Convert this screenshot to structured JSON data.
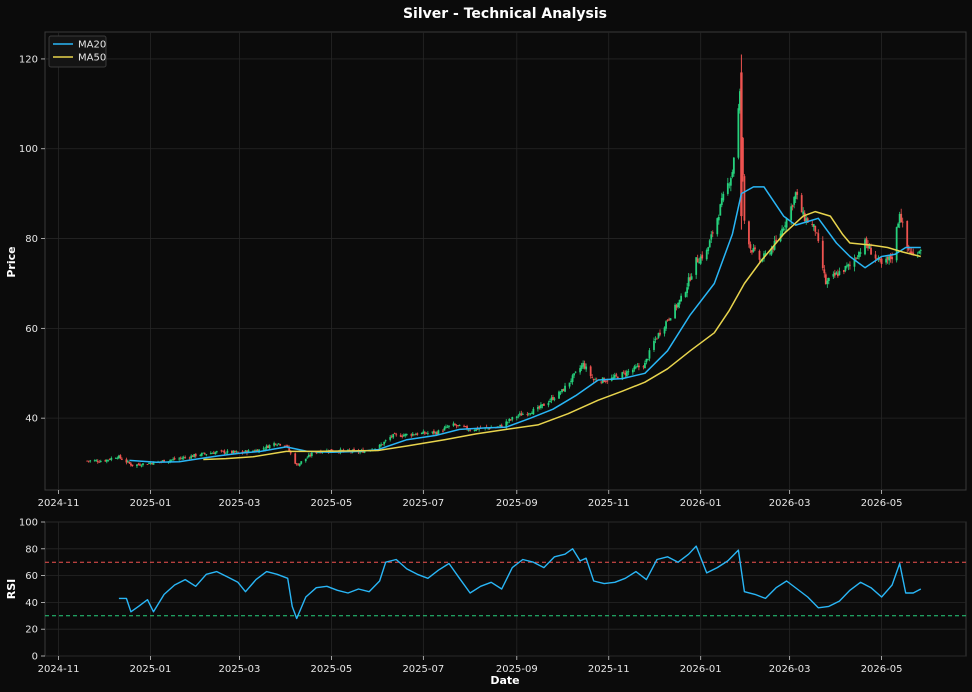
{
  "chart_data": [
    {
      "type": "candlestick",
      "title": "Silver - Technical Analysis",
      "xlabel": "",
      "ylabel": "Price",
      "ylim": [
        24,
        126
      ],
      "xlim": [
        "2024-10-23",
        "2026-06-26"
      ],
      "x_ticks": [
        "2024-11",
        "2025-01",
        "2025-03",
        "2025-05",
        "2025-07",
        "2025-09",
        "2025-11",
        "2026-01",
        "2026-03",
        "2026-05"
      ],
      "y_ticks": [
        40,
        60,
        80,
        100,
        120
      ],
      "grid": true,
      "legend_placement": "top-left",
      "colors": {
        "up": "#26d07c",
        "down": "#ef5350",
        "ma20": "#29b6f6",
        "ma50": "#e8d44d",
        "background": "#0b0b0b",
        "grid": "#2a2a2a"
      },
      "close_anchors": [
        [
          "2024-11-20",
          30.5
        ],
        [
          "2024-12-01",
          30.5
        ],
        [
          "2024-12-10",
          31.5
        ],
        [
          "2024-12-20",
          29.5
        ],
        [
          "2025-01-05",
          30.2
        ],
        [
          "2025-01-20",
          31.0
        ],
        [
          "2025-02-01",
          31.8
        ],
        [
          "2025-02-15",
          32.5
        ],
        [
          "2025-03-01",
          32.3
        ],
        [
          "2025-03-15",
          33.0
        ],
        [
          "2025-03-25",
          34.5
        ],
        [
          "2025-04-01",
          34.0
        ],
        [
          "2025-04-08",
          29.5
        ],
        [
          "2025-04-20",
          32.5
        ],
        [
          "2025-05-01",
          32.8
        ],
        [
          "2025-05-20",
          32.5
        ],
        [
          "2025-06-01",
          33.5
        ],
        [
          "2025-06-10",
          36.0
        ],
        [
          "2025-06-25",
          36.5
        ],
        [
          "2025-07-10",
          36.8
        ],
        [
          "2025-07-20",
          38.5
        ],
        [
          "2025-08-01",
          37.5
        ],
        [
          "2025-08-20",
          38.0
        ],
        [
          "2025-09-01",
          40.5
        ],
        [
          "2025-09-15",
          42.0
        ],
        [
          "2025-10-01",
          46.0
        ],
        [
          "2025-10-15",
          52.0
        ],
        [
          "2025-10-22",
          48.5
        ],
        [
          "2025-11-01",
          48.5
        ],
        [
          "2025-11-15",
          50.5
        ],
        [
          "2025-11-25",
          52.0
        ],
        [
          "2025-12-01",
          57.0
        ],
        [
          "2025-12-10",
          62.0
        ],
        [
          "2025-12-20",
          67.0
        ],
        [
          "2025-12-29",
          75.0
        ],
        [
          "2026-01-05",
          77.0
        ],
        [
          "2026-01-15",
          88.0
        ],
        [
          "2026-01-22",
          95.0
        ],
        [
          "2026-01-27",
          112.0
        ],
        [
          "2026-01-30",
          84.0
        ],
        [
          "2026-02-03",
          78.0
        ],
        [
          "2026-02-10",
          75.0
        ],
        [
          "2026-02-20",
          79.0
        ],
        [
          "2026-03-01",
          86.0
        ],
        [
          "2026-03-05",
          90.0
        ],
        [
          "2026-03-10",
          85.0
        ],
        [
          "2026-03-18",
          82.0
        ],
        [
          "2026-03-25",
          70.0
        ],
        [
          "2026-04-01",
          72.0
        ],
        [
          "2026-04-10",
          74.0
        ],
        [
          "2026-04-20",
          79.0
        ],
        [
          "2026-05-01",
          74.0
        ],
        [
          "2026-05-08",
          76.0
        ],
        [
          "2026-05-13",
          86.0
        ],
        [
          "2026-05-18",
          78.0
        ],
        [
          "2026-05-22",
          76.0
        ],
        [
          "2026-05-27",
          78.0
        ]
      ],
      "series": [
        {
          "name": "MA20",
          "color": "#29b6f6",
          "values": [
            [
              "2024-12-18",
              30.6
            ],
            [
              "2025-01-05",
              30.2
            ],
            [
              "2025-01-20",
              30.3
            ],
            [
              "2025-02-01",
              30.9
            ],
            [
              "2025-02-15",
              31.6
            ],
            [
              "2025-03-01",
              32.2
            ],
            [
              "2025-03-15",
              32.6
            ],
            [
              "2025-04-01",
              33.6
            ],
            [
              "2025-04-15",
              32.6
            ],
            [
              "2025-05-01",
              32.4
            ],
            [
              "2025-05-20",
              32.6
            ],
            [
              "2025-06-01",
              33.0
            ],
            [
              "2025-06-20",
              35.2
            ],
            [
              "2025-07-10",
              36.2
            ],
            [
              "2025-07-25",
              37.5
            ],
            [
              "2025-08-10",
              37.8
            ],
            [
              "2025-08-25",
              38.0
            ],
            [
              "2025-09-10",
              40.0
            ],
            [
              "2025-09-25",
              42.0
            ],
            [
              "2025-10-10",
              45.0
            ],
            [
              "2025-10-25",
              48.5
            ],
            [
              "2025-11-10",
              48.8
            ],
            [
              "2025-11-25",
              50.0
            ],
            [
              "2025-12-10",
              55.0
            ],
            [
              "2025-12-25",
              63.0
            ],
            [
              "2026-01-10",
              70.0
            ],
            [
              "2026-01-22",
              81.0
            ],
            [
              "2026-01-28",
              90.0
            ],
            [
              "2026-02-05",
              91.5
            ],
            [
              "2026-02-12",
              91.5
            ],
            [
              "2026-02-25",
              85.0
            ],
            [
              "2026-03-05",
              83.0
            ],
            [
              "2026-03-15",
              84.0
            ],
            [
              "2026-03-20",
              84.5
            ],
            [
              "2026-04-01",
              79.0
            ],
            [
              "2026-04-10",
              76.0
            ],
            [
              "2026-04-20",
              73.5
            ],
            [
              "2026-05-01",
              76.0
            ],
            [
              "2026-05-10",
              76.5
            ],
            [
              "2026-05-17",
              78.0
            ],
            [
              "2026-05-27",
              78.0
            ]
          ]
        },
        {
          "name": "MA50",
          "color": "#e8d44d",
          "values": [
            [
              "2025-02-05",
              30.8
            ],
            [
              "2025-02-20",
              31.0
            ],
            [
              "2025-03-10",
              31.4
            ],
            [
              "2025-04-01",
              32.6
            ],
            [
              "2025-04-20",
              32.6
            ],
            [
              "2025-05-15",
              32.7
            ],
            [
              "2025-06-01",
              32.8
            ],
            [
              "2025-06-20",
              33.8
            ],
            [
              "2025-07-15",
              35.2
            ],
            [
              "2025-08-05",
              36.5
            ],
            [
              "2025-08-25",
              37.5
            ],
            [
              "2025-09-15",
              38.5
            ],
            [
              "2025-10-05",
              41.0
            ],
            [
              "2025-10-25",
              44.0
            ],
            [
              "2025-11-10",
              46.0
            ],
            [
              "2025-11-25",
              48.0
            ],
            [
              "2025-12-10",
              51.0
            ],
            [
              "2025-12-25",
              55.0
            ],
            [
              "2026-01-10",
              59.0
            ],
            [
              "2026-01-20",
              64.0
            ],
            [
              "2026-01-30",
              70.0
            ],
            [
              "2026-02-10",
              75.0
            ],
            [
              "2026-02-25",
              81.0
            ],
            [
              "2026-03-10",
              85.0
            ],
            [
              "2026-03-18",
              86.0
            ],
            [
              "2026-03-28",
              85.0
            ],
            [
              "2026-04-05",
              81.0
            ],
            [
              "2026-04-10",
              79.0
            ],
            [
              "2026-04-25",
              78.5
            ],
            [
              "2026-05-05",
              78.0
            ],
            [
              "2026-05-15",
              77.0
            ],
            [
              "2026-05-27",
              76.0
            ]
          ]
        }
      ]
    },
    {
      "type": "line",
      "title": "",
      "xlabel": "Date",
      "ylabel": "RSI",
      "ylim": [
        0,
        100
      ],
      "xlim": [
        "2024-10-23",
        "2026-06-26"
      ],
      "x_ticks": [
        "2024-11",
        "2025-01",
        "2025-03",
        "2025-05",
        "2025-07",
        "2025-09",
        "2025-11",
        "2026-01",
        "2026-03",
        "2026-05"
      ],
      "y_ticks": [
        0,
        20,
        40,
        60,
        80,
        100
      ],
      "grid": true,
      "reference_lines": [
        {
          "value": 70,
          "color": "#ef5350"
        },
        {
          "value": 30,
          "color": "#26d07c"
        }
      ],
      "series": [
        {
          "name": "RSI",
          "color": "#29b6f6",
          "values": [
            [
              "2024-12-11",
              43
            ],
            [
              "2024-12-16",
              43
            ],
            [
              "2024-12-19",
              33
            ],
            [
              "2024-12-24",
              37
            ],
            [
              "2024-12-30",
              42
            ],
            [
              "2025-01-03",
              33
            ],
            [
              "2025-01-10",
              46
            ],
            [
              "2025-01-17",
              53
            ],
            [
              "2025-01-24",
              57
            ],
            [
              "2025-01-31",
              52
            ],
            [
              "2025-02-07",
              61
            ],
            [
              "2025-02-14",
              63
            ],
            [
              "2025-02-21",
              59
            ],
            [
              "2025-02-28",
              55
            ],
            [
              "2025-03-05",
              48
            ],
            [
              "2025-03-12",
              57
            ],
            [
              "2025-03-19",
              63
            ],
            [
              "2025-03-26",
              61
            ],
            [
              "2025-04-02",
              58
            ],
            [
              "2025-04-05",
              37
            ],
            [
              "2025-04-08",
              28
            ],
            [
              "2025-04-14",
              44
            ],
            [
              "2025-04-21",
              51
            ],
            [
              "2025-04-28",
              52
            ],
            [
              "2025-05-05",
              49
            ],
            [
              "2025-05-12",
              47
            ],
            [
              "2025-05-19",
              50
            ],
            [
              "2025-05-26",
              48
            ],
            [
              "2025-06-02",
              56
            ],
            [
              "2025-06-06",
              70
            ],
            [
              "2025-06-13",
              72
            ],
            [
              "2025-06-20",
              65
            ],
            [
              "2025-06-27",
              61
            ],
            [
              "2025-07-04",
              58
            ],
            [
              "2025-07-11",
              64
            ],
            [
              "2025-07-18",
              69
            ],
            [
              "2025-07-25",
              58
            ],
            [
              "2025-08-01",
              47
            ],
            [
              "2025-08-08",
              52
            ],
            [
              "2025-08-15",
              55
            ],
            [
              "2025-08-22",
              50
            ],
            [
              "2025-08-29",
              66
            ],
            [
              "2025-09-05",
              72
            ],
            [
              "2025-09-12",
              70
            ],
            [
              "2025-09-19",
              66
            ],
            [
              "2025-09-26",
              74
            ],
            [
              "2025-10-03",
              76
            ],
            [
              "2025-10-08",
              80
            ],
            [
              "2025-10-13",
              71
            ],
            [
              "2025-10-17",
              73
            ],
            [
              "2025-10-22",
              56
            ],
            [
              "2025-10-29",
              54
            ],
            [
              "2025-11-05",
              55
            ],
            [
              "2025-11-12",
              58
            ],
            [
              "2025-11-19",
              63
            ],
            [
              "2025-11-26",
              57
            ],
            [
              "2025-12-03",
              72
            ],
            [
              "2025-12-10",
              74
            ],
            [
              "2025-12-17",
              70
            ],
            [
              "2025-12-24",
              76
            ],
            [
              "2025-12-29",
              82
            ],
            [
              "2026-01-05",
              62
            ],
            [
              "2026-01-12",
              66
            ],
            [
              "2026-01-19",
              71
            ],
            [
              "2026-01-26",
              79
            ],
            [
              "2026-01-30",
              48
            ],
            [
              "2026-02-06",
              46
            ],
            [
              "2026-02-13",
              43
            ],
            [
              "2026-02-20",
              51
            ],
            [
              "2026-02-27",
              56
            ],
            [
              "2026-03-06",
              50
            ],
            [
              "2026-03-13",
              44
            ],
            [
              "2026-03-20",
              36
            ],
            [
              "2026-03-27",
              37
            ],
            [
              "2026-04-03",
              41
            ],
            [
              "2026-04-10",
              49
            ],
            [
              "2026-04-17",
              55
            ],
            [
              "2026-04-24",
              51
            ],
            [
              "2026-05-01",
              44
            ],
            [
              "2026-05-08",
              53
            ],
            [
              "2026-05-13",
              69
            ],
            [
              "2026-05-17",
              47
            ],
            [
              "2026-05-22",
              47
            ],
            [
              "2026-05-27",
              50
            ]
          ]
        }
      ]
    }
  ]
}
